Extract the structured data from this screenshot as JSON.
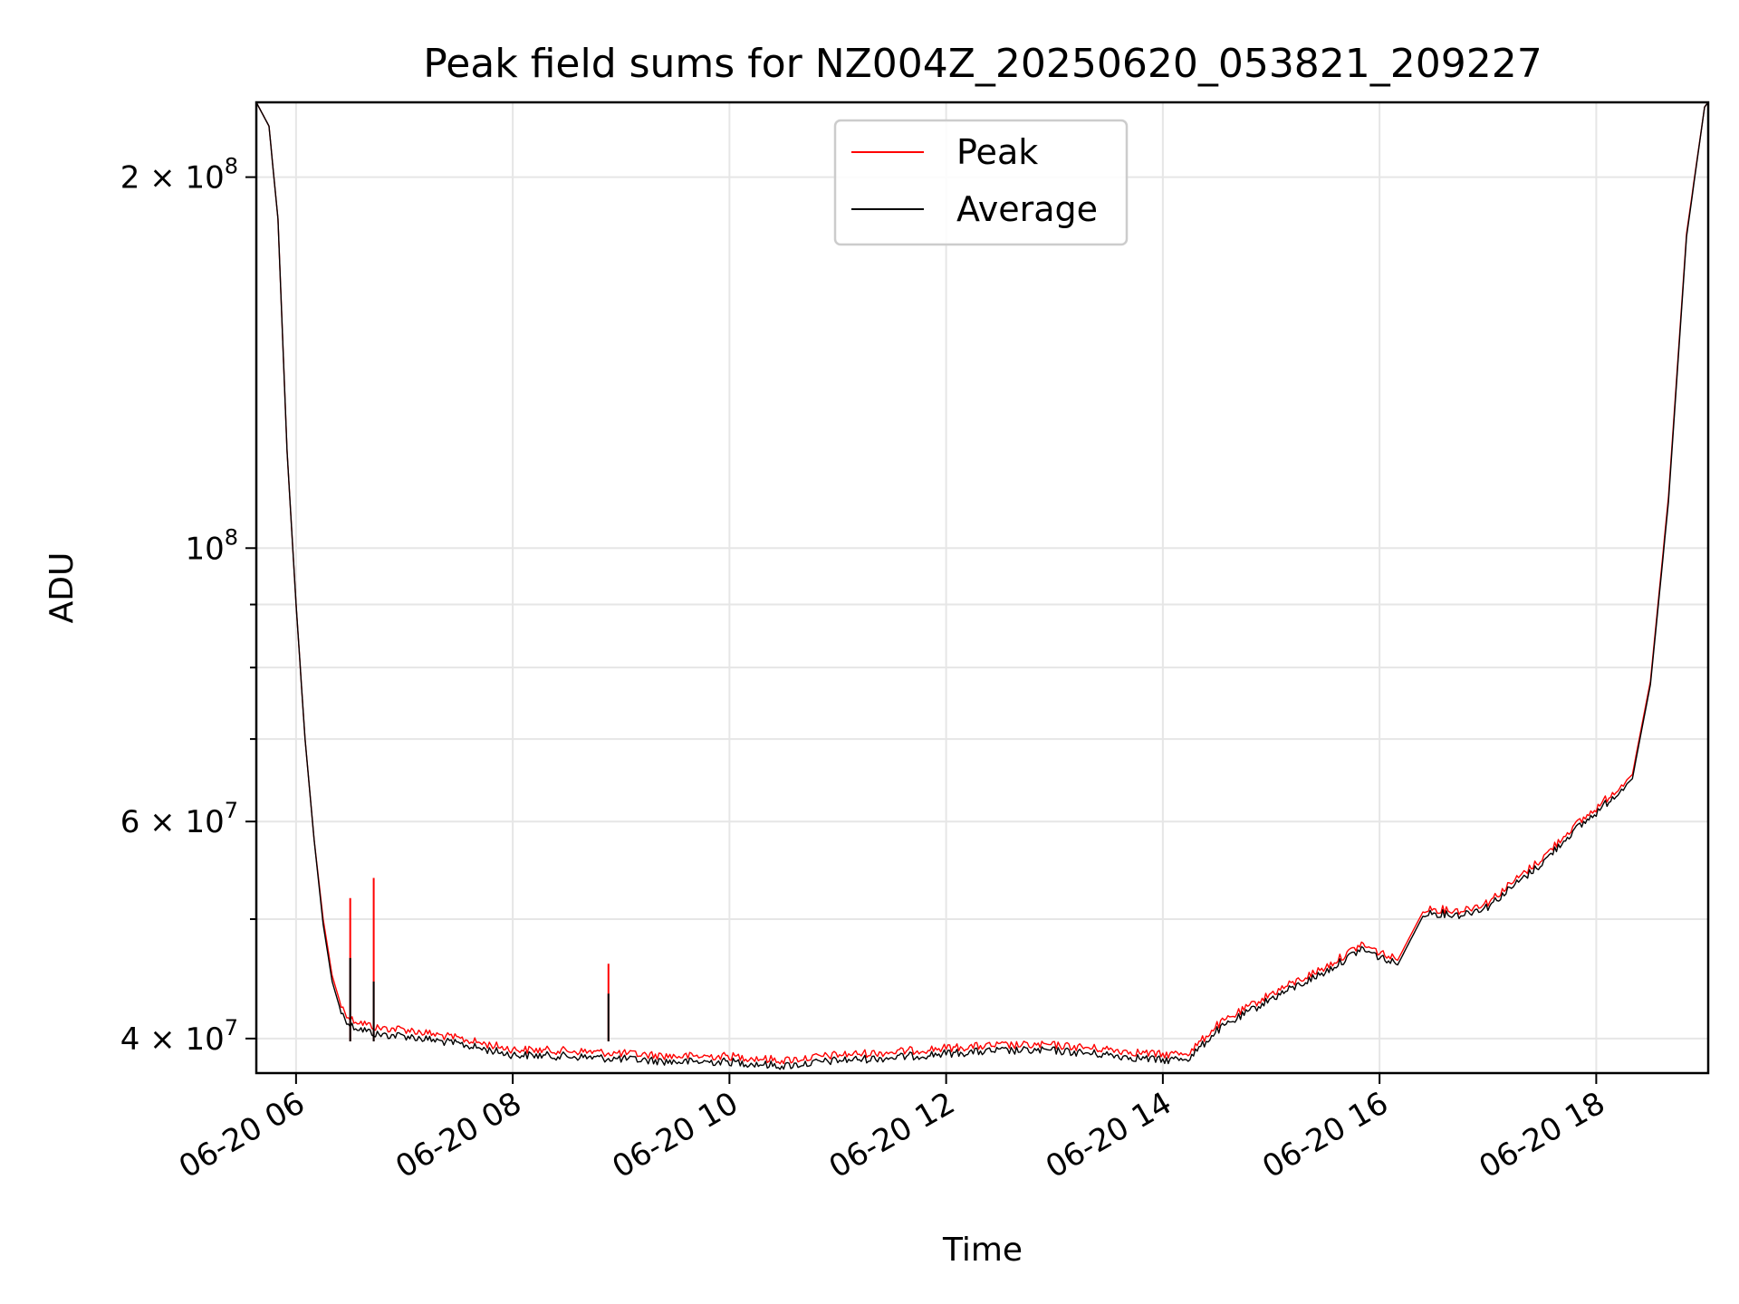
{
  "chart_data": {
    "type": "line",
    "title": "Peak field sums for NZ004Z_20250620_053821_209227",
    "xlabel": "Time",
    "ylabel": "ADU",
    "y_scale": "log",
    "grid": true,
    "legend_position": "upper center",
    "xlim": [
      "2025-06-20 05:38",
      "2025-06-20 19:02"
    ],
    "ylim": [
      37500000,
      230000000
    ],
    "x_ticks": [
      {
        "value": "2025-06-20 06:00",
        "label": "06-20 06"
      },
      {
        "value": "2025-06-20 08:00",
        "label": "06-20 08"
      },
      {
        "value": "2025-06-20 10:00",
        "label": "06-20 10"
      },
      {
        "value": "2025-06-20 12:00",
        "label": "06-20 12"
      },
      {
        "value": "2025-06-20 14:00",
        "label": "06-20 14"
      },
      {
        "value": "2025-06-20 16:00",
        "label": "06-20 16"
      },
      {
        "value": "2025-06-20 18:00",
        "label": "06-20 18"
      }
    ],
    "y_ticks": [
      {
        "value": 40000000,
        "base": "4 × 10",
        "exp": "7"
      },
      {
        "value": 60000000,
        "base": "6 × 10",
        "exp": "7"
      },
      {
        "value": 100000000,
        "base": "10",
        "exp": "8"
      },
      {
        "value": 200000000,
        "base": "2 × 10",
        "exp": "8"
      }
    ],
    "y_minor_ticks": [
      50000000,
      70000000,
      80000000,
      90000000
    ],
    "series": [
      {
        "name": "Peak",
        "color": "#ff0000",
        "points": [
          [
            "2025-06-20 05:38",
            230000000
          ],
          [
            "2025-06-20 05:45",
            220000000
          ],
          [
            "2025-06-20 05:50",
            185000000
          ],
          [
            "2025-06-20 05:55",
            120000000
          ],
          [
            "2025-06-20 06:00",
            90000000
          ],
          [
            "2025-06-20 06:05",
            70000000
          ],
          [
            "2025-06-20 06:10",
            58000000
          ],
          [
            "2025-06-20 06:15",
            50000000
          ],
          [
            "2025-06-20 06:20",
            45000000
          ],
          [
            "2025-06-20 06:25",
            42500000
          ],
          [
            "2025-06-20 06:30",
            41500000
          ],
          [
            "2025-06-20 06:45",
            40800000
          ],
          [
            "2025-06-20 07:00",
            40700000
          ],
          [
            "2025-06-20 07:30",
            40000000
          ],
          [
            "2025-06-20 08:00",
            39200000
          ],
          [
            "2025-06-20 08:30",
            39100000
          ],
          [
            "2025-06-20 09:00",
            38900000
          ],
          [
            "2025-06-20 09:30",
            38700000
          ],
          [
            "2025-06-20 10:00",
            38700000
          ],
          [
            "2025-06-20 10:30",
            38400000
          ],
          [
            "2025-06-20 11:00",
            38800000
          ],
          [
            "2025-06-20 11:30",
            39000000
          ],
          [
            "2025-06-20 12:00",
            39300000
          ],
          [
            "2025-06-20 12:30",
            39500000
          ],
          [
            "2025-06-20 13:00",
            39500000
          ],
          [
            "2025-06-20 13:30",
            39200000
          ],
          [
            "2025-06-20 14:00",
            38800000
          ],
          [
            "2025-06-20 14:15",
            39000000
          ],
          [
            "2025-06-20 14:30",
            41000000
          ],
          [
            "2025-06-20 15:00",
            43500000
          ],
          [
            "2025-06-20 15:30",
            45700000
          ],
          [
            "2025-06-20 15:50",
            47700000
          ],
          [
            "2025-06-20 16:10",
            46300000
          ],
          [
            "2025-06-20 16:25",
            51000000
          ],
          [
            "2025-06-20 16:45",
            50800000
          ],
          [
            "2025-06-20 17:00",
            51600000
          ],
          [
            "2025-06-20 17:30",
            56000000
          ],
          [
            "2025-06-20 17:45",
            59000000
          ],
          [
            "2025-06-20 18:00",
            61500000
          ],
          [
            "2025-06-20 18:20",
            65500000
          ],
          [
            "2025-06-20 18:30",
            78000000
          ],
          [
            "2025-06-20 18:40",
            110000000
          ],
          [
            "2025-06-20 18:50",
            180000000
          ],
          [
            "2025-06-20 19:00",
            228000000
          ],
          [
            "2025-06-20 19:02",
            230000000
          ]
        ],
        "spikes": [
          [
            "2025-06-20 06:30",
            52000000
          ],
          [
            "2025-06-20 06:43",
            54000000
          ],
          [
            "2025-06-20 08:53",
            46000000
          ]
        ]
      },
      {
        "name": "Average",
        "color": "#000000",
        "points": [
          [
            "2025-06-20 05:38",
            230000000
          ],
          [
            "2025-06-20 05:45",
            220000000
          ],
          [
            "2025-06-20 05:50",
            185000000
          ],
          [
            "2025-06-20 05:55",
            120000000
          ],
          [
            "2025-06-20 06:00",
            90000000
          ],
          [
            "2025-06-20 06:05",
            70000000
          ],
          [
            "2025-06-20 06:10",
            58000000
          ],
          [
            "2025-06-20 06:15",
            49500000
          ],
          [
            "2025-06-20 06:20",
            44500000
          ],
          [
            "2025-06-20 06:25",
            42000000
          ],
          [
            "2025-06-20 06:30",
            41000000
          ],
          [
            "2025-06-20 06:45",
            40300000
          ],
          [
            "2025-06-20 07:00",
            40200000
          ],
          [
            "2025-06-20 07:30",
            39600000
          ],
          [
            "2025-06-20 08:00",
            38800000
          ],
          [
            "2025-06-20 08:30",
            38700000
          ],
          [
            "2025-06-20 09:00",
            38500000
          ],
          [
            "2025-06-20 09:30",
            38300000
          ],
          [
            "2025-06-20 10:00",
            38300000
          ],
          [
            "2025-06-20 10:30",
            38000000
          ],
          [
            "2025-06-20 11:00",
            38400000
          ],
          [
            "2025-06-20 11:30",
            38600000
          ],
          [
            "2025-06-20 12:00",
            38900000
          ],
          [
            "2025-06-20 12:30",
            39100000
          ],
          [
            "2025-06-20 13:00",
            39100000
          ],
          [
            "2025-06-20 13:30",
            38800000
          ],
          [
            "2025-06-20 14:00",
            38400000
          ],
          [
            "2025-06-20 14:15",
            38600000
          ],
          [
            "2025-06-20 14:30",
            40600000
          ],
          [
            "2025-06-20 15:00",
            43100000
          ],
          [
            "2025-06-20 15:30",
            45300000
          ],
          [
            "2025-06-20 15:50",
            47300000
          ],
          [
            "2025-06-20 16:10",
            45900000
          ],
          [
            "2025-06-20 16:25",
            50600000
          ],
          [
            "2025-06-20 16:45",
            50400000
          ],
          [
            "2025-06-20 17:00",
            51200000
          ],
          [
            "2025-06-20 17:30",
            55500000
          ],
          [
            "2025-06-20 17:45",
            58500000
          ],
          [
            "2025-06-20 18:00",
            61000000
          ],
          [
            "2025-06-20 18:20",
            65000000
          ],
          [
            "2025-06-20 18:30",
            77500000
          ],
          [
            "2025-06-20 18:40",
            109000000
          ],
          [
            "2025-06-20 18:50",
            179000000
          ],
          [
            "2025-06-20 19:00",
            228000000
          ],
          [
            "2025-06-20 19:02",
            230000000
          ]
        ],
        "spikes": [
          [
            "2025-06-20 06:30",
            46500000
          ],
          [
            "2025-06-20 06:43",
            44500000
          ],
          [
            "2025-06-20 08:53",
            43500000
          ]
        ]
      }
    ]
  }
}
